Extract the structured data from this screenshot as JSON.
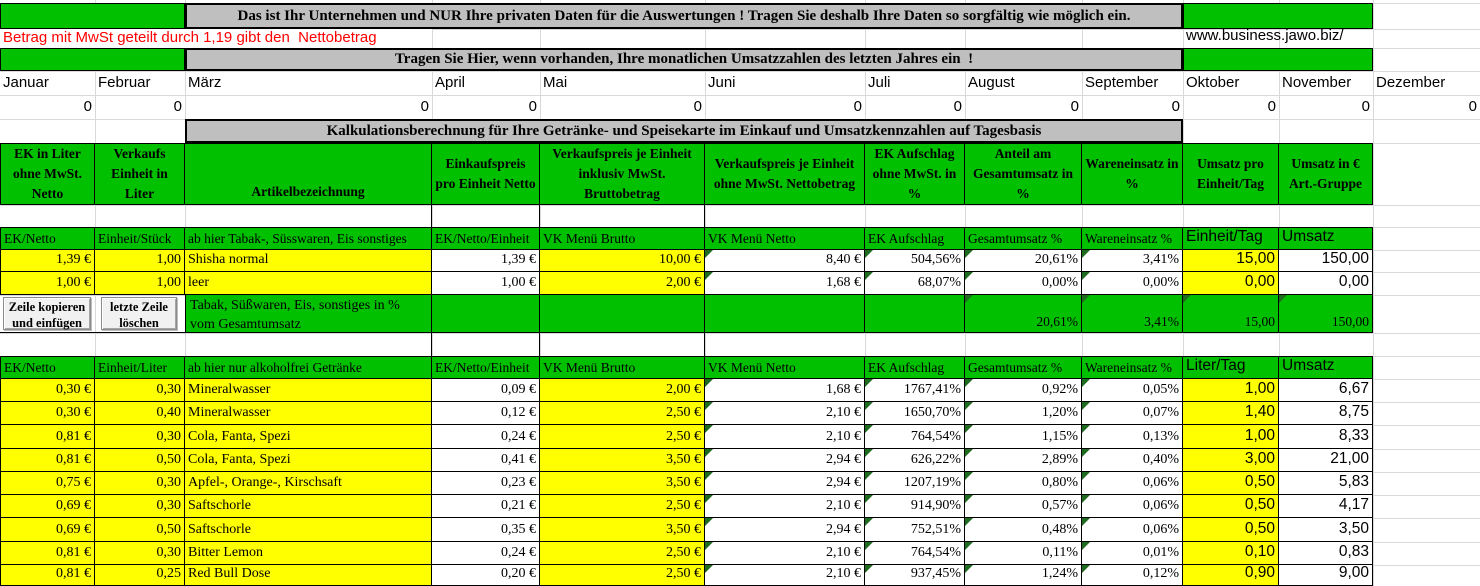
{
  "banners": {
    "top": "Das ist Ihr Unternehmen und NUR Ihre privaten Daten für die Auswertungen ! Tragen Sie deshalb Ihre Daten so sorgfältig wie möglich ein.",
    "monthly": "Tragen Sie Hier, wenn vorhanden, Ihre monatlichen Umsatzzahlen des letzten Jahres ein  !",
    "calculation": "Kalkulationsberechnung für Ihre Getränke- und Speisekarte im Einkauf und Umsatzkennzahlen auf Tagesbasis"
  },
  "note_red": "Betrag mit MwSt geteilt durch 1,19 gibt den  Nettobetrag",
  "website": "www.business.jawo.biz/",
  "months": {
    "labels": [
      "Januar",
      "Februar",
      "März",
      "April",
      "Mai",
      "Juni",
      "Juli",
      "August",
      "September",
      "Oktober",
      "November",
      "Dezember"
    ],
    "values": [
      "0",
      "0",
      "0",
      "0",
      "0",
      "0",
      "0",
      "0",
      "0",
      "0",
      "0",
      "0"
    ]
  },
  "buttons": {
    "copy_row": "Zeile kopieren und einfügen",
    "delete_row": "letzte Zeile löschen"
  },
  "table": {
    "header": [
      "EK in Liter ohne MwSt. Netto",
      "Verkaufs Einheit in Liter",
      "Artikelbezeichnung",
      "Einkaufspreis pro Einheit Netto",
      "Verkaufspreis je Einheit inklusiv MwSt. Bruttobetrag",
      "Verkaufspreis je Einheit ohne MwSt. Nettobetrag",
      "EK Aufschlag ohne MwSt. in %",
      "Anteil am Gesamtumsatz in %",
      "Wareneinsatz in %",
      "Umsatz pro Einheit/Tag",
      "Umsatz in € Art.-Gruppe"
    ],
    "sections": [
      {
        "subheader": [
          "EK/Netto",
          "Einheit/Stück",
          "ab hier Tabak-, Süsswaren, Eis sonstiges",
          "EK/Netto/Einheit",
          "VK Menü Brutto",
          "VK Menü Netto",
          "EK Aufschlag",
          "Gesamtumsatz %",
          "Wareneinsatz %",
          "Einheit/Tag",
          "Umsatz"
        ],
        "rows": [
          [
            "1,39 €",
            "1,00",
            "Shisha normal",
            "1,39 €",
            "10,00 €",
            "8,40 €",
            "504,56%",
            "20,61%",
            "3,41%",
            "15,00",
            "150,00"
          ],
          [
            "1,00 €",
            "1,00",
            "leer",
            "1,00 €",
            "2,00 €",
            "1,68 €",
            "68,07%",
            "0,00%",
            "0,00%",
            "0,00",
            "0,00"
          ]
        ],
        "summary": {
          "label": "Tabak, Süßwaren, Eis, sonstiges in % vom Gesamtumsatz",
          "values": [
            "20,61%",
            "3,41%",
            "15,00",
            "150,00"
          ]
        }
      },
      {
        "subheader": [
          "EK/Netto",
          "Einheit/Liter",
          "ab hier nur alkoholfrei Getränke",
          "EK/Netto/Einheit",
          "VK Menü Brutto",
          "VK Menü Netto",
          "EK Aufschlag",
          "Gesamtumsatz %",
          "Wareneinsatz %",
          "Liter/Tag",
          "Umsatz"
        ],
        "rows": [
          [
            "0,30 €",
            "0,30",
            "Mineralwasser",
            "0,09 €",
            "2,00 €",
            "1,68 €",
            "1767,41%",
            "0,92%",
            "0,05%",
            "1,00",
            "6,67"
          ],
          [
            "0,30 €",
            "0,40",
            "Mineralwasser",
            "0,12 €",
            "2,50 €",
            "2,10 €",
            "1650,70%",
            "1,20%",
            "0,07%",
            "1,40",
            "8,75"
          ],
          [
            "0,81 €",
            "0,30",
            "Cola, Fanta, Spezi",
            "0,24 €",
            "2,50 €",
            "2,10 €",
            "764,54%",
            "1,15%",
            "0,13%",
            "1,00",
            "8,33"
          ],
          [
            "0,81 €",
            "0,50",
            "Cola, Fanta, Spezi",
            "0,41 €",
            "3,50 €",
            "2,94 €",
            "626,22%",
            "2,89%",
            "0,40%",
            "3,00",
            "21,00"
          ],
          [
            "0,75 €",
            "0,30",
            "Apfel-, Orange-, Kirschsaft",
            "0,23 €",
            "3,50 €",
            "2,94 €",
            "1207,19%",
            "0,80%",
            "0,06%",
            "0,50",
            "5,83"
          ],
          [
            "0,69 €",
            "0,30",
            "Saftschorle",
            "0,21 €",
            "2,50 €",
            "2,10 €",
            "914,90%",
            "0,57%",
            "0,06%",
            "0,50",
            "4,17"
          ],
          [
            "0,69 €",
            "0,50",
            "Saftschorle",
            "0,35 €",
            "3,50 €",
            "2,94 €",
            "752,51%",
            "0,48%",
            "0,06%",
            "0,50",
            "3,50"
          ],
          [
            "0,81 €",
            "0,30",
            "Bitter Lemon",
            "0,24 €",
            "2,50 €",
            "2,10 €",
            "764,54%",
            "0,11%",
            "0,01%",
            "0,10",
            "0,83"
          ],
          [
            "0,81 €",
            "0,25",
            "Red Bull Dose",
            "0,20 €",
            "2,50 €",
            "2,10 €",
            "937,45%",
            "1,24%",
            "0,12%",
            "0,90",
            "9,00"
          ]
        ]
      }
    ]
  },
  "colors": {
    "green": "#00c000",
    "yellow": "#ffff00",
    "banner_gray": "#bfbfbf",
    "red_text": "#ff0000",
    "triangle_green": "#1f6b1f",
    "gridline": "#d9d9d9",
    "button_face": "#f1f1f1"
  }
}
